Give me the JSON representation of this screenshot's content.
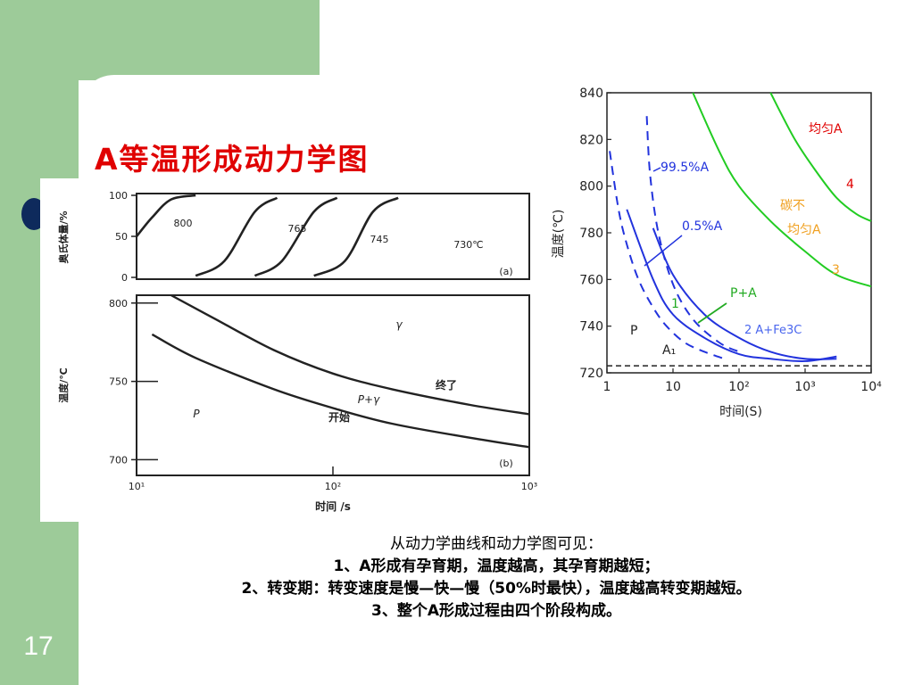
{
  "slide": {
    "title": "A等温形成动力学图",
    "page_number": "17",
    "text_lines": [
      "从动力学曲线和动力学图可见：",
      "1、A形成有孕育期，温度越高，其孕育期越短；",
      "2、转变期：转变速度是慢—快—慢（50%时最快），温度越高转变期越短。",
      "3、整个A形成过程由四个阶段构成。"
    ],
    "colors": {
      "green": "#9dcb99",
      "title": "#e00000",
      "bullet": "#0e2a5c",
      "blue": "#2233dd",
      "greenCurve": "#22cc22",
      "redLabel": "#e00000",
      "orangeLabel": "#f0a020"
    }
  },
  "chart_data": [
    {
      "id": "a",
      "type": "line",
      "panel_label": "(a)",
      "ylabel": "奥氏体量/%",
      "xscale": "log",
      "xlim": [
        10,
        1000
      ],
      "ylim": [
        0,
        100
      ],
      "yticks": [
        "0",
        "50",
        "100"
      ],
      "series": [
        {
          "name": "800",
          "x": [
            10,
            12,
            15,
            20
          ],
          "y": [
            50,
            73,
            95,
            100
          ]
        },
        {
          "name": "765",
          "x": [
            20,
            28,
            40,
            52
          ],
          "y": [
            2,
            20,
            80,
            97
          ]
        },
        {
          "name": "745",
          "x": [
            40,
            55,
            80,
            105
          ],
          "y": [
            2,
            20,
            80,
            97
          ]
        },
        {
          "name": "730℃",
          "x": [
            80,
            115,
            160,
            215
          ],
          "y": [
            2,
            20,
            80,
            97
          ]
        }
      ]
    },
    {
      "id": "b",
      "type": "line",
      "panel_label": "(b)",
      "xlabel": "时间 /s",
      "ylabel": "温度/℃",
      "xscale": "log",
      "xlim": [
        10,
        1000
      ],
      "ylim": [
        690,
        805
      ],
      "xticks": [
        "10¹",
        "10²",
        "10³"
      ],
      "yticks": [
        "700",
        "750",
        "800"
      ],
      "regions": [
        "γ",
        "P+γ",
        "P"
      ],
      "series": [
        {
          "name": "开始",
          "x": [
            12,
            20,
            50,
            100,
            200,
            500,
            1000
          ],
          "y": [
            780,
            765,
            745,
            733,
            723,
            714,
            708
          ]
        },
        {
          "name": "终了",
          "x": [
            15,
            25,
            50,
            100,
            200,
            500,
            1000
          ],
          "y": [
            805,
            790,
            770,
            755,
            745,
            735,
            729
          ]
        }
      ]
    },
    {
      "id": "c",
      "type": "line",
      "xlabel": "时间(S)",
      "ylabel": "温度(℃)",
      "xscale": "log",
      "xlim": [
        1,
        10000
      ],
      "ylim": [
        720,
        840
      ],
      "xticks": [
        "1",
        "10",
        "10²",
        "10³",
        "10⁴"
      ],
      "yticks": [
        "720",
        "740",
        "760",
        "780",
        "800",
        "820",
        "840"
      ],
      "a1_temperature": 723,
      "annotations": [
        "99.5%A",
        "0.5%A",
        "P+A",
        "2 A+Fe3C",
        "均匀A",
        "碳不",
        "均匀A",
        "P",
        "A₁",
        "1",
        "3",
        "4"
      ],
      "series": [
        {
          "name": "0.5%A",
          "style": "dashed",
          "color": "#2233dd",
          "x": [
            1.1,
            1.5,
            2,
            3,
            5,
            8,
            15,
            30,
            60
          ],
          "y": [
            815,
            790,
            775,
            760,
            748,
            740,
            733,
            729,
            726
          ]
        },
        {
          "name": "99.5%A",
          "style": "dashed",
          "color": "#2233dd",
          "x": [
            4,
            4.5,
            6,
            10,
            20,
            50,
            100
          ],
          "y": [
            830,
            805,
            780,
            758,
            743,
            733,
            729
          ]
        },
        {
          "name": "1",
          "style": "solid",
          "color": "#2233dd",
          "x": [
            2,
            5,
            10,
            30,
            100,
            300,
            1000,
            3000
          ],
          "y": [
            790,
            760,
            745,
            735,
            728,
            726,
            725,
            727
          ]
        },
        {
          "name": "2",
          "style": "solid",
          "color": "#2233dd",
          "x": [
            5,
            10,
            30,
            100,
            300,
            1000,
            3000
          ],
          "y": [
            782,
            762,
            745,
            735,
            729,
            726,
            726
          ]
        },
        {
          "name": "3",
          "style": "solid",
          "color": "#22cc22",
          "x": [
            20,
            50,
            100,
            300,
            1000,
            3000,
            10000
          ],
          "y": [
            840,
            815,
            800,
            785,
            772,
            762,
            757
          ]
        },
        {
          "name": "4",
          "style": "solid",
          "color": "#22cc22",
          "x": [
            300,
            700,
            1500,
            3000,
            6000,
            10000
          ],
          "y": [
            840,
            820,
            806,
            795,
            788,
            785
          ]
        }
      ]
    }
  ]
}
